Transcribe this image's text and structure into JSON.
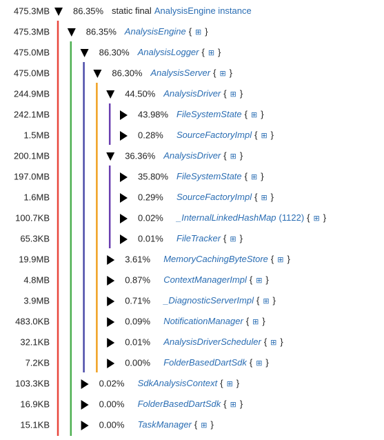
{
  "brace_open": "{",
  "expand_icon": "⊞",
  "brace_close": "}",
  "root": {
    "size": "475.3MB",
    "percent": "86.35%",
    "prefix": "static final",
    "name": "AnalysisEngine instance",
    "children": [
      {
        "size": "475.3MB",
        "percent": "86.35%",
        "name": "AnalysisEngine",
        "children": [
          {
            "size": "475.0MB",
            "percent": "86.30%",
            "name": "AnalysisLogger",
            "children": [
              {
                "size": "475.0MB",
                "percent": "86.30%",
                "name": "AnalysisServer",
                "children": [
                  {
                    "size": "244.9MB",
                    "percent": "44.50%",
                    "name": "AnalysisDriver",
                    "children": [
                      {
                        "size": "242.1MB",
                        "percent": "43.98%",
                        "name": "FileSystemState"
                      },
                      {
                        "size": "1.5MB",
                        "percent": "0.28%",
                        "name": "SourceFactoryImpl"
                      }
                    ]
                  },
                  {
                    "size": "200.1MB",
                    "percent": "36.36%",
                    "name": "AnalysisDriver",
                    "children": [
                      {
                        "size": "197.0MB",
                        "percent": "35.80%",
                        "name": "FileSystemState"
                      },
                      {
                        "size": "1.6MB",
                        "percent": "0.29%",
                        "name": "SourceFactoryImpl"
                      },
                      {
                        "size": "100.7KB",
                        "percent": "0.02%",
                        "name": "_InternalLinkedHashMap",
                        "count": "(1122)"
                      },
                      {
                        "size": "65.3KB",
                        "percent": "0.01%",
                        "name": "FileTracker"
                      }
                    ]
                  },
                  {
                    "size": "19.9MB",
                    "percent": "3.61%",
                    "name": "MemoryCachingByteStore"
                  },
                  {
                    "size": "4.8MB",
                    "percent": "0.87%",
                    "name": "ContextManagerImpl"
                  },
                  {
                    "size": "3.9MB",
                    "percent": "0.71%",
                    "name": "_DiagnosticServerImpl"
                  },
                  {
                    "size": "483.0KB",
                    "percent": "0.09%",
                    "name": "NotificationManager"
                  },
                  {
                    "size": "32.1KB",
                    "percent": "0.01%",
                    "name": "AnalysisDriverScheduler"
                  },
                  {
                    "size": "7.2KB",
                    "percent": "0.00%",
                    "name": "FolderBasedDartSdk"
                  }
                ]
              }
            ]
          },
          {
            "size": "103.3KB",
            "percent": "0.02%",
            "name": "SdkAnalysisContext"
          },
          {
            "size": "16.9KB",
            "percent": "0.00%",
            "name": "FolderBasedDartSdk"
          },
          {
            "size": "15.1KB",
            "percent": "0.00%",
            "name": "TaskManager"
          }
        ]
      }
    ]
  }
}
